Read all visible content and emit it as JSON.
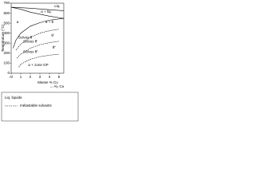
{
  "chart_data": {
    "type": "line",
    "ylabel": "Température (°C)",
    "xlabel": "Masse % Cu",
    "x_end_label": "→ Al₂ Cu",
    "xlim": [
      0,
      5.5
    ],
    "ylim": [
      0,
      700
    ],
    "xticks": [
      {
        "value": 0,
        "label": "Al"
      },
      1,
      2,
      3,
      4,
      5
    ],
    "yticks": [
      0,
      100,
      200,
      300,
      400,
      500,
      600,
      700
    ],
    "series": [
      {
        "color": "#000000",
        "dashed": false,
        "x": [
          0,
          2,
          4,
          5.5
        ],
        "values": [
          660,
          650,
          635,
          625
        ]
      },
      {
        "color": "#000000",
        "dashed": false,
        "x": [
          0,
          1,
          2,
          3,
          4,
          5.5
        ],
        "values": [
          660,
          640,
          610,
          590,
          570,
          548
        ]
      },
      {
        "name": "Solvus θ",
        "color": "#000000",
        "dashed": false,
        "x": [
          0.2,
          0.5,
          1,
          2,
          3,
          4,
          5.5
        ],
        "values": [
          250,
          330,
          400,
          470,
          505,
          530,
          548
        ]
      },
      {
        "name": "Solvus θ'",
        "color": "#000000",
        "dashed": true,
        "x": [
          0.5,
          1,
          2,
          3,
          4,
          5
        ],
        "values": [
          230,
          290,
          360,
          400,
          425,
          440
        ]
      },
      {
        "name": "Solvus θ''",
        "color": "#000000",
        "dashed": true,
        "x": [
          0.6,
          1,
          2,
          3,
          4,
          5
        ],
        "values": [
          150,
          190,
          250,
          285,
          305,
          320
        ]
      },
      {
        "color": "#000000",
        "dashed": true,
        "x": [
          0.8,
          1,
          2,
          3,
          4,
          5
        ],
        "values": [
          60,
          90,
          140,
          165,
          180,
          190
        ]
      }
    ],
    "annotations": [
      "Liq.",
      "α + liq.",
      "α",
      "α + θ",
      "θ'",
      "θ''",
      "α + zone GP"
    ],
    "legend_entries": [
      "Liq.   liquide",
      "métastable solvants"
    ]
  }
}
